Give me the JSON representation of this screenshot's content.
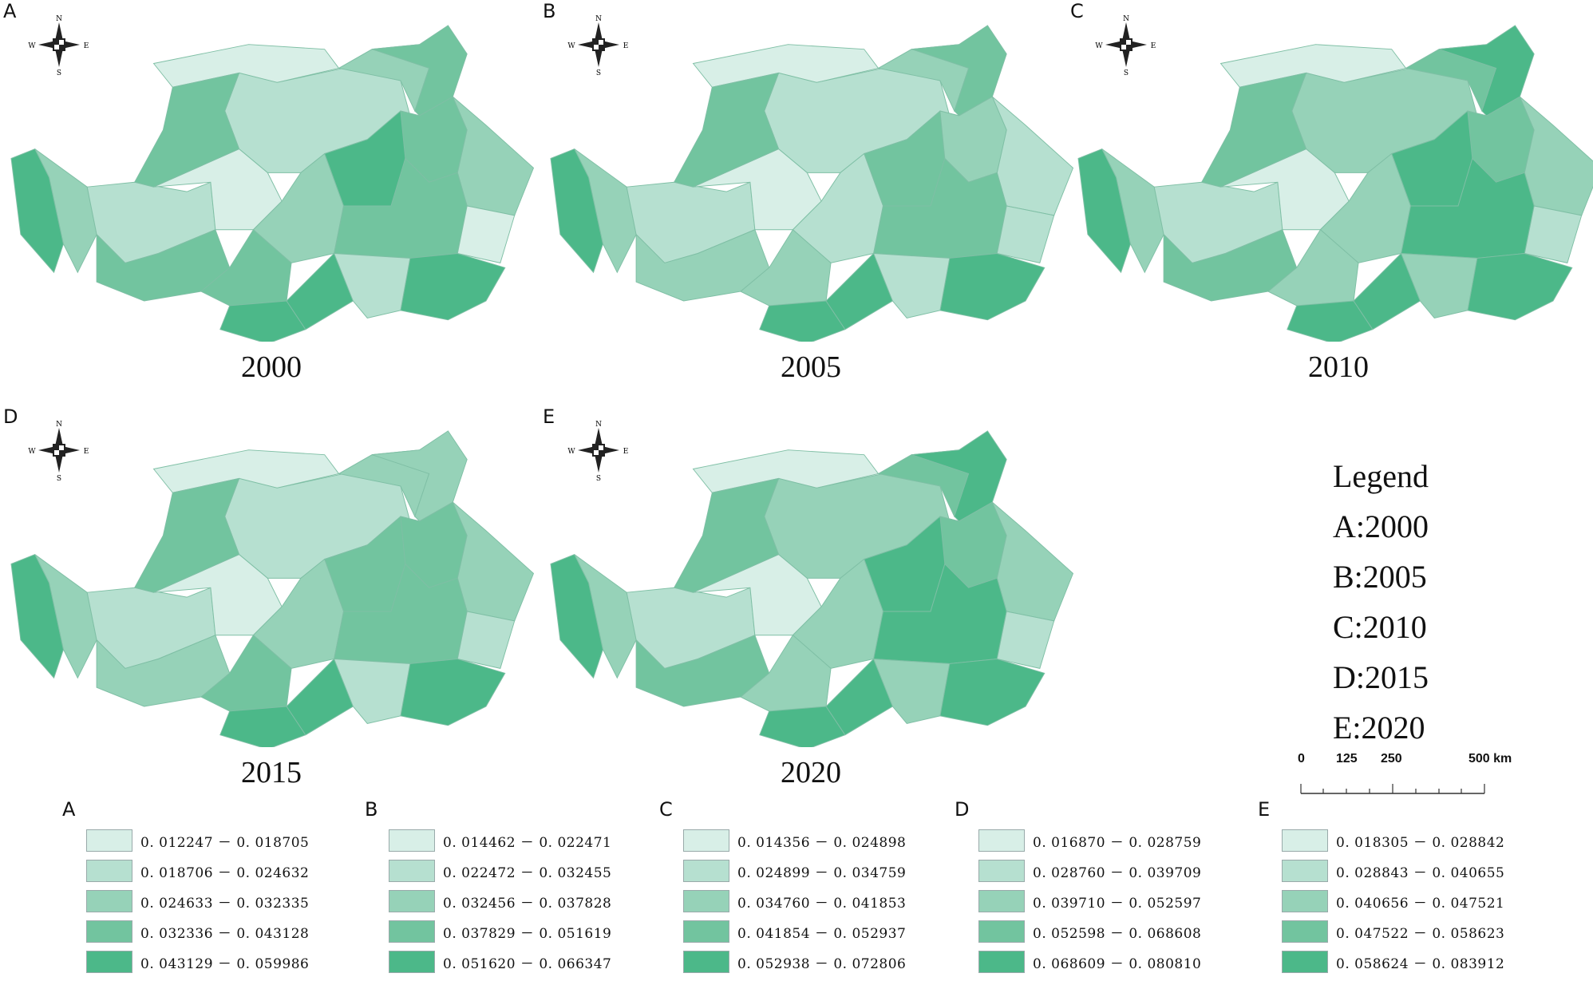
{
  "panels": [
    {
      "letter": "A",
      "year": "2000",
      "classes": [
        0,
        1,
        2,
        3,
        4,
        3,
        2,
        4,
        2,
        1,
        0,
        2,
        3,
        4,
        3,
        3,
        4,
        4,
        1,
        3,
        0
      ]
    },
    {
      "letter": "B",
      "year": "2005",
      "classes": [
        0,
        1,
        2,
        3,
        3,
        2,
        1,
        4,
        2,
        1,
        0,
        1,
        3,
        4,
        2,
        2,
        4,
        4,
        1,
        3,
        1
      ]
    },
    {
      "letter": "C",
      "year": "2010",
      "classes": [
        0,
        2,
        3,
        4,
        4,
        3,
        2,
        4,
        2,
        1,
        0,
        2,
        4,
        4,
        3,
        2,
        4,
        4,
        2,
        3,
        1
      ]
    },
    {
      "letter": "D",
      "year": "2015",
      "classes": [
        0,
        1,
        2,
        2,
        3,
        3,
        2,
        4,
        2,
        1,
        0,
        2,
        3,
        4,
        2,
        3,
        4,
        4,
        1,
        3,
        1
      ]
    },
    {
      "letter": "E",
      "year": "2020",
      "classes": [
        0,
        2,
        3,
        4,
        4,
        3,
        2,
        4,
        2,
        1,
        0,
        2,
        4,
        4,
        3,
        2,
        4,
        4,
        2,
        3,
        1
      ]
    }
  ],
  "compass": {
    "n": "N",
    "s": "S",
    "e": "E",
    "w": "W"
  },
  "legend": {
    "title": "Legend",
    "items": [
      "A:2000",
      "B:2005",
      "C:2010",
      "D:2015",
      "E:2020"
    ]
  },
  "scalebar": {
    "labels": [
      "0",
      "125",
      "250",
      "500 km"
    ]
  },
  "colors": [
    "#d8efe7",
    "#b6e0d0",
    "#96d2b8",
    "#72c49f",
    "#4cb889"
  ],
  "class_legends": [
    {
      "letter": "A",
      "ranges": [
        "0. 012247 － 0. 018705",
        "0. 018706 － 0. 024632",
        "0. 024633 － 0. 032335",
        "0. 032336 － 0. 043128",
        "0. 043129 － 0. 059986"
      ]
    },
    {
      "letter": "B",
      "ranges": [
        "0. 014462 － 0. 022471",
        "0. 022472 － 0. 032455",
        "0. 032456 － 0. 037828",
        "0. 037829 － 0. 051619",
        "0. 051620 － 0. 066347"
      ]
    },
    {
      "letter": "C",
      "ranges": [
        "0. 014356 － 0. 024898",
        "0. 024899 － 0. 034759",
        "0. 034760 － 0. 041853",
        "0. 041854 － 0. 052937",
        "0. 052938 － 0. 072806"
      ]
    },
    {
      "letter": "D",
      "ranges": [
        "0. 016870 － 0. 028759",
        "0. 028760 － 0. 039709",
        "0. 039710 － 0. 052597",
        "0. 052598 － 0. 068608",
        "0. 068609 － 0. 080810"
      ]
    },
    {
      "letter": "E",
      "ranges": [
        "0. 018305 － 0. 028842",
        "0. 028843 － 0. 040655",
        "0. 040656 － 0. 047521",
        "0. 047522 － 0. 058623",
        "0. 058624 － 0. 083912"
      ]
    }
  ]
}
